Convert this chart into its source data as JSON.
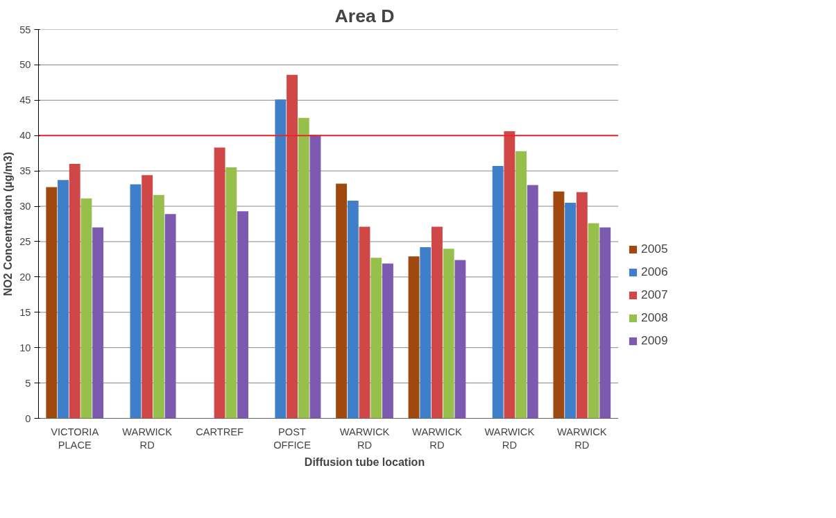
{
  "chart_data": {
    "type": "bar",
    "title": "Area D",
    "xlabel": "Diffusion tube location",
    "ylabel": "NO2 Concentration (µg/m3)",
    "categories": [
      "VICTORIA\nPLACE",
      "WARWICK\nRD",
      "CARTREF",
      "POST\nOFFICE",
      "WARWICK\nRD",
      "WARWICK\nRD",
      "WARWICK\nRD",
      "WARWICK\nRD"
    ],
    "series": [
      {
        "name": "2005",
        "color": "#a0490f",
        "values": [
          32.7,
          null,
          null,
          null,
          33.2,
          22.9,
          null,
          32.1
        ]
      },
      {
        "name": "2006",
        "color": "#3f7fc9",
        "values": [
          33.7,
          33.1,
          null,
          45.1,
          30.8,
          24.2,
          35.7,
          30.5
        ]
      },
      {
        "name": "2007",
        "color": "#cf4747",
        "values": [
          36.0,
          34.4,
          38.3,
          48.6,
          27.1,
          27.1,
          40.6,
          32.0
        ]
      },
      {
        "name": "2008",
        "color": "#97bf4c",
        "values": [
          31.1,
          31.6,
          35.5,
          42.5,
          22.7,
          24.0,
          37.8,
          27.6
        ]
      },
      {
        "name": "2009",
        "color": "#7c5ab0",
        "values": [
          27.0,
          28.9,
          29.3,
          40.1,
          21.9,
          22.4,
          33.0,
          27.0
        ]
      }
    ],
    "ylim": [
      0,
      55
    ],
    "yticks": [
      0,
      5,
      10,
      15,
      20,
      25,
      30,
      35,
      40,
      45,
      50,
      55
    ],
    "ref_lines": [
      {
        "axis": "y",
        "value": 40,
        "color": "#e8262a"
      }
    ],
    "grid": "y",
    "legend": "right"
  }
}
